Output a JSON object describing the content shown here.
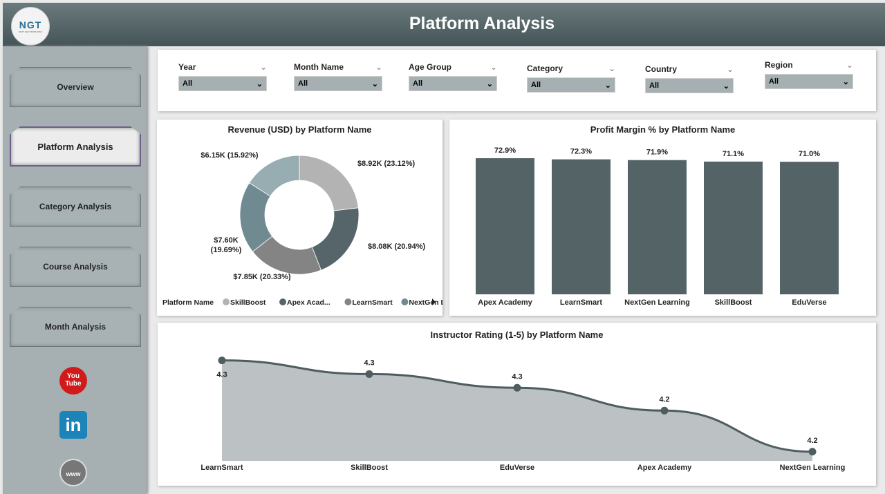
{
  "header": {
    "title": "Platform Analysis",
    "logo_text": "NGT",
    "logo_sub": "NEXT GEN TEMPLATES"
  },
  "sidebar": {
    "items": [
      {
        "label": "Overview"
      },
      {
        "label": "Platform Analysis",
        "active": true
      },
      {
        "label": "Category Analysis"
      },
      {
        "label": "Course Analysis"
      },
      {
        "label": "Month Analysis"
      }
    ],
    "social": [
      {
        "icon": "youtube-icon",
        "text": "You Tube"
      },
      {
        "icon": "linkedin-icon",
        "text": "in"
      },
      {
        "icon": "globe-www-icon",
        "text": "www"
      }
    ]
  },
  "filters": [
    {
      "label": "Year",
      "value": "All"
    },
    {
      "label": "Month Name",
      "value": "All"
    },
    {
      "label": "Age Group",
      "value": "All"
    },
    {
      "label": "Category",
      "value": "All"
    },
    {
      "label": "Country",
      "value": "All"
    },
    {
      "label": "Region",
      "value": "All"
    }
  ],
  "chart_data": [
    {
      "type": "pie",
      "title": "Revenue (USD) by Platform Name",
      "donut": true,
      "slices": [
        {
          "value": 8.92,
          "label": "$8.92K (23.12%)",
          "color": "#b3b3b3"
        },
        {
          "value": 8.08,
          "label": "$8.08K (20.94%)",
          "color": "#55656a"
        },
        {
          "value": 7.85,
          "label": "$7.85K (20.33%)",
          "color": "#848484"
        },
        {
          "value": 7.6,
          "label": "$7.60K (19.69%)",
          "color": "#6f8a90"
        },
        {
          "value": 6.15,
          "label": "$6.15K (15.92%)",
          "color": "#98adb1"
        }
      ],
      "legend": {
        "title": "Platform Name",
        "placement": "bottom-left",
        "entries": [
          {
            "name": "SkillBoost",
            "color": "#b3b3b3"
          },
          {
            "name": "Apex Acad...",
            "color": "#55656a"
          },
          {
            "name": "LearnSmart",
            "color": "#848484"
          },
          {
            "name": "NextGen L...",
            "color": "#6f8a90"
          }
        ]
      }
    },
    {
      "type": "bar",
      "title": "Profit Margin % by Platform Name",
      "categories": [
        "Apex Academy",
        "LearnSmart",
        "NextGen Learning",
        "SkillBoost",
        "EduVerse"
      ],
      "values": [
        72.9,
        72.3,
        71.9,
        71.1,
        71.0
      ],
      "labels": [
        "72.9%",
        "72.3%",
        "71.9%",
        "71.1%",
        "71.0%"
      ],
      "ylim": [
        0,
        73
      ],
      "color": "#546366",
      "grid": false
    },
    {
      "type": "area",
      "title": "Instructor Rating (1-5) by Platform Name",
      "categories": [
        "LearnSmart",
        "SkillBoost",
        "EduVerse",
        "Apex Academy",
        "NextGen Learning"
      ],
      "values": [
        4.35,
        4.32,
        4.29,
        4.24,
        4.15
      ],
      "labels": [
        "4.3",
        "4.3",
        "4.3",
        "4.2",
        "4.2"
      ],
      "ylim": [
        4.13,
        4.36
      ],
      "line_color": "#4e5d60",
      "fill_color": "#bcc1c3",
      "grid": false
    }
  ]
}
